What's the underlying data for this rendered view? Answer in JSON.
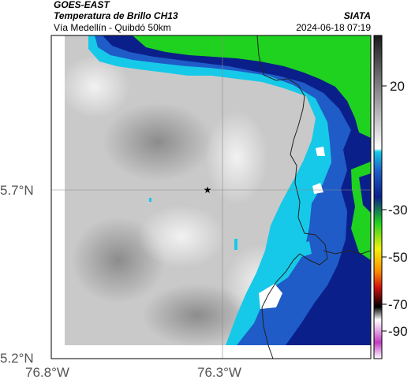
{
  "header": {
    "satellite": "GOES-EAST",
    "product": "Temperatura de Brillo CH13",
    "route": "Vía Medellín - Quibdó 50km",
    "agency": "SIATA",
    "datetime": "2024-06-18 07:19"
  },
  "axes": {
    "y_ticks": [
      "5.7°N",
      "5.2°N"
    ],
    "x_ticks": [
      "76.8°W",
      "76.3°W"
    ]
  },
  "colorbar": {
    "ticks": [
      "20",
      "-30",
      "-50",
      "-70",
      "-90"
    ],
    "colors": {
      "warm_gray": "#d6d6d6",
      "green": "#1fd21f",
      "dark_blue": "#0b1f8a",
      "blue": "#1f5cc8",
      "cyan": "#16c9e8",
      "yellow": "#f2f20a",
      "red": "#d01010",
      "black": "#000000",
      "magenta": "#c23bc2"
    }
  },
  "marker": {
    "symbol": "star"
  }
}
